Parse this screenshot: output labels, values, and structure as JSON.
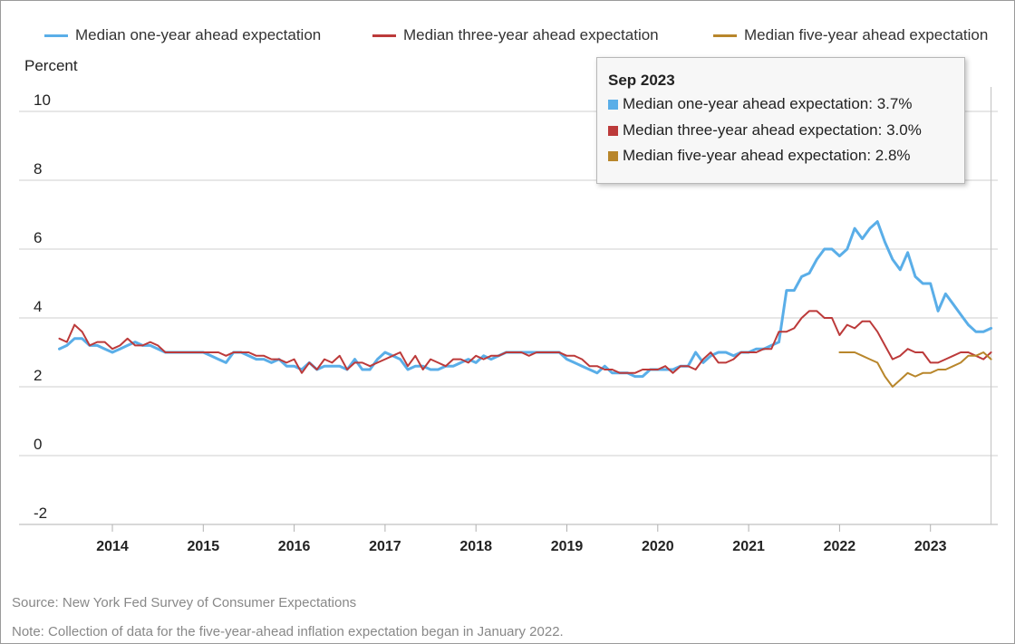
{
  "colors": {
    "one_year": "#5aaee8",
    "three_year": "#bc3a3a",
    "five_year": "#b8862b"
  },
  "legend": {
    "one_year": "Median one-year ahead expectation",
    "three_year": "Median three-year ahead expectation",
    "five_year": "Median five-year ahead expectation"
  },
  "tooltip": {
    "title": "Sep 2023",
    "rows": [
      "Median one-year ahead expectation: 3.7%",
      "Median three-year ahead expectation: 3.0%",
      "Median five-year ahead expectation: 2.8%"
    ]
  },
  "footnotes": {
    "source": "Source: New York Fed Survey of Consumer Expectations",
    "note": "Note: Collection of data for the five-year-ahead inflation expectation began in January 2022."
  },
  "chart_data": {
    "type": "line",
    "title": "",
    "xlabel": "",
    "ylabel": "Percent",
    "ylim": [
      -2,
      10
    ],
    "yticks": [
      "10",
      "8",
      "6",
      "4",
      "2",
      "0",
      "-2"
    ],
    "xticks": [
      "2014",
      "2015",
      "2016",
      "2017",
      "2018",
      "2019",
      "2020",
      "2021",
      "2022",
      "2023"
    ],
    "x_range": [
      "2013-06",
      "2023-09"
    ],
    "grid": true,
    "legend_position": "top",
    "series": [
      {
        "name": "Median one-year ahead expectation",
        "x": [
          "2013-06",
          "2013-07",
          "2013-08",
          "2013-09",
          "2013-10",
          "2013-11",
          "2013-12",
          "2014-01",
          "2014-02",
          "2014-03",
          "2014-04",
          "2014-05",
          "2014-06",
          "2014-07",
          "2014-08",
          "2014-09",
          "2014-10",
          "2014-11",
          "2014-12",
          "2015-01",
          "2015-02",
          "2015-03",
          "2015-04",
          "2015-05",
          "2015-06",
          "2015-07",
          "2015-08",
          "2015-09",
          "2015-10",
          "2015-11",
          "2015-12",
          "2016-01",
          "2016-02",
          "2016-03",
          "2016-04",
          "2016-05",
          "2016-06",
          "2016-07",
          "2016-08",
          "2016-09",
          "2016-10",
          "2016-11",
          "2016-12",
          "2017-01",
          "2017-02",
          "2017-03",
          "2017-04",
          "2017-05",
          "2017-06",
          "2017-07",
          "2017-08",
          "2017-09",
          "2017-10",
          "2017-11",
          "2017-12",
          "2018-01",
          "2018-02",
          "2018-03",
          "2018-04",
          "2018-05",
          "2018-06",
          "2018-07",
          "2018-08",
          "2018-09",
          "2018-10",
          "2018-11",
          "2018-12",
          "2019-01",
          "2019-02",
          "2019-03",
          "2019-04",
          "2019-05",
          "2019-06",
          "2019-07",
          "2019-08",
          "2019-09",
          "2019-10",
          "2019-11",
          "2019-12",
          "2020-01",
          "2020-02",
          "2020-03",
          "2020-04",
          "2020-05",
          "2020-06",
          "2020-07",
          "2020-08",
          "2020-09",
          "2020-10",
          "2020-11",
          "2020-12",
          "2021-01",
          "2021-02",
          "2021-03",
          "2021-04",
          "2021-05",
          "2021-06",
          "2021-07",
          "2021-08",
          "2021-09",
          "2021-10",
          "2021-11",
          "2021-12",
          "2022-01",
          "2022-02",
          "2022-03",
          "2022-04",
          "2022-05",
          "2022-06",
          "2022-07",
          "2022-08",
          "2022-09",
          "2022-10",
          "2022-11",
          "2022-12",
          "2023-01",
          "2023-02",
          "2023-03",
          "2023-04",
          "2023-05",
          "2023-06",
          "2023-07",
          "2023-08",
          "2023-09"
        ],
        "values": [
          3.1,
          3.2,
          3.4,
          3.4,
          3.2,
          3.2,
          3.1,
          3.0,
          3.1,
          3.2,
          3.3,
          3.2,
          3.2,
          3.1,
          3.0,
          3.0,
          3.0,
          3.0,
          3.0,
          3.0,
          2.9,
          2.8,
          2.7,
          3.0,
          3.0,
          2.9,
          2.8,
          2.8,
          2.7,
          2.8,
          2.6,
          2.6,
          2.5,
          2.7,
          2.5,
          2.6,
          2.6,
          2.6,
          2.5,
          2.8,
          2.5,
          2.5,
          2.8,
          3.0,
          2.9,
          2.8,
          2.5,
          2.6,
          2.6,
          2.5,
          2.5,
          2.6,
          2.6,
          2.7,
          2.8,
          2.7,
          2.9,
          2.8,
          2.9,
          3.0,
          3.0,
          3.0,
          3.0,
          3.0,
          3.0,
          3.0,
          3.0,
          2.8,
          2.7,
          2.6,
          2.5,
          2.4,
          2.6,
          2.4,
          2.4,
          2.4,
          2.3,
          2.3,
          2.5,
          2.5,
          2.5,
          2.5,
          2.6,
          2.6,
          3.0,
          2.7,
          2.9,
          3.0,
          3.0,
          2.9,
          3.0,
          3.0,
          3.1,
          3.1,
          3.2,
          3.3,
          4.8,
          4.8,
          5.2,
          5.3,
          5.7,
          6.0,
          6.0,
          5.8,
          6.0,
          6.6,
          6.3,
          6.6,
          6.8,
          6.2,
          5.7,
          5.4,
          5.9,
          5.2,
          5.0,
          5.0,
          4.2,
          4.7,
          4.4,
          4.1,
          3.8,
          3.6,
          3.6,
          3.7
        ]
      },
      {
        "name": "Median three-year ahead expectation",
        "x": [
          "2013-06",
          "2013-07",
          "2013-08",
          "2013-09",
          "2013-10",
          "2013-11",
          "2013-12",
          "2014-01",
          "2014-02",
          "2014-03",
          "2014-04",
          "2014-05",
          "2014-06",
          "2014-07",
          "2014-08",
          "2014-09",
          "2014-10",
          "2014-11",
          "2014-12",
          "2015-01",
          "2015-02",
          "2015-03",
          "2015-04",
          "2015-05",
          "2015-06",
          "2015-07",
          "2015-08",
          "2015-09",
          "2015-10",
          "2015-11",
          "2015-12",
          "2016-01",
          "2016-02",
          "2016-03",
          "2016-04",
          "2016-05",
          "2016-06",
          "2016-07",
          "2016-08",
          "2016-09",
          "2016-10",
          "2016-11",
          "2016-12",
          "2017-01",
          "2017-02",
          "2017-03",
          "2017-04",
          "2017-05",
          "2017-06",
          "2017-07",
          "2017-08",
          "2017-09",
          "2017-10",
          "2017-11",
          "2017-12",
          "2018-01",
          "2018-02",
          "2018-03",
          "2018-04",
          "2018-05",
          "2018-06",
          "2018-07",
          "2018-08",
          "2018-09",
          "2018-10",
          "2018-11",
          "2018-12",
          "2019-01",
          "2019-02",
          "2019-03",
          "2019-04",
          "2019-05",
          "2019-06",
          "2019-07",
          "2019-08",
          "2019-09",
          "2019-10",
          "2019-11",
          "2019-12",
          "2020-01",
          "2020-02",
          "2020-03",
          "2020-04",
          "2020-05",
          "2020-06",
          "2020-07",
          "2020-08",
          "2020-09",
          "2020-10",
          "2020-11",
          "2020-12",
          "2021-01",
          "2021-02",
          "2021-03",
          "2021-04",
          "2021-05",
          "2021-06",
          "2021-07",
          "2021-08",
          "2021-09",
          "2021-10",
          "2021-11",
          "2021-12",
          "2022-01",
          "2022-02",
          "2022-03",
          "2022-04",
          "2022-05",
          "2022-06",
          "2022-07",
          "2022-08",
          "2022-09",
          "2022-10",
          "2022-11",
          "2022-12",
          "2023-01",
          "2023-02",
          "2023-03",
          "2023-04",
          "2023-05",
          "2023-06",
          "2023-07",
          "2023-08",
          "2023-09"
        ],
        "values": [
          3.4,
          3.3,
          3.8,
          3.6,
          3.2,
          3.3,
          3.3,
          3.1,
          3.2,
          3.4,
          3.2,
          3.2,
          3.3,
          3.2,
          3.0,
          3.0,
          3.0,
          3.0,
          3.0,
          3.0,
          3.0,
          3.0,
          2.9,
          3.0,
          3.0,
          3.0,
          2.9,
          2.9,
          2.8,
          2.8,
          2.7,
          2.8,
          2.4,
          2.7,
          2.5,
          2.8,
          2.7,
          2.9,
          2.5,
          2.7,
          2.7,
          2.6,
          2.7,
          2.8,
          2.9,
          3.0,
          2.6,
          2.9,
          2.5,
          2.8,
          2.7,
          2.6,
          2.8,
          2.8,
          2.7,
          2.9,
          2.8,
          2.9,
          2.9,
          3.0,
          3.0,
          3.0,
          2.9,
          3.0,
          3.0,
          3.0,
          3.0,
          2.9,
          2.9,
          2.8,
          2.6,
          2.6,
          2.5,
          2.5,
          2.4,
          2.4,
          2.4,
          2.5,
          2.5,
          2.5,
          2.6,
          2.4,
          2.6,
          2.6,
          2.5,
          2.8,
          3.0,
          2.7,
          2.7,
          2.8,
          3.0,
          3.0,
          3.0,
          3.1,
          3.1,
          3.6,
          3.6,
          3.7,
          4.0,
          4.2,
          4.2,
          4.0,
          4.0,
          3.5,
          3.8,
          3.7,
          3.9,
          3.9,
          3.6,
          3.2,
          2.8,
          2.9,
          3.1,
          3.0,
          3.0,
          2.7,
          2.7,
          2.8,
          2.9,
          3.0,
          3.0,
          2.9,
          2.8,
          3.0
        ]
      },
      {
        "name": "Median five-year ahead expectation",
        "x": [
          "2022-01",
          "2022-02",
          "2022-03",
          "2022-04",
          "2022-05",
          "2022-06",
          "2022-07",
          "2022-08",
          "2022-09",
          "2022-10",
          "2022-11",
          "2022-12",
          "2023-01",
          "2023-02",
          "2023-03",
          "2023-04",
          "2023-05",
          "2023-06",
          "2023-07",
          "2023-08",
          "2023-09"
        ],
        "values": [
          3.0,
          3.0,
          3.0,
          2.9,
          2.8,
          2.7,
          2.3,
          2.0,
          2.2,
          2.4,
          2.3,
          2.4,
          2.4,
          2.5,
          2.5,
          2.6,
          2.7,
          2.9,
          2.9,
          3.0,
          2.8
        ]
      }
    ]
  }
}
